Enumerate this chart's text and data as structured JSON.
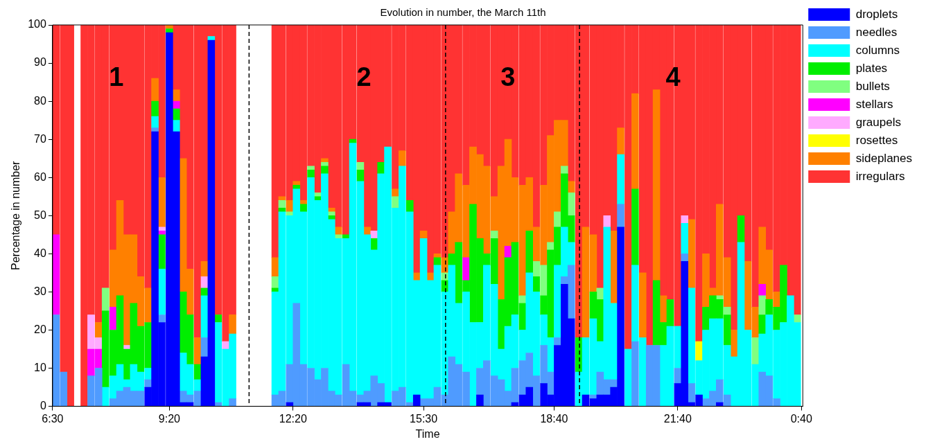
{
  "chart_data": {
    "type": "bar",
    "stacked": true,
    "title": "Evolution in number, the March 11th",
    "xlabel": "Time",
    "ylabel": "Percentage in number",
    "x": [
      "--03-11T06:35",
      "--03-11T06:46",
      "--03-11T06:56",
      "--03-11T07:16",
      "--03-11T07:26",
      "--03-11T07:37",
      "--03-11T07:47",
      "--03-11T07:58",
      "--03-11T08:08",
      "--03-11T08:18",
      "--03-11T08:28",
      "--03-11T08:38",
      "--03-11T08:49",
      "--03-11T08:59",
      "--03-11T09:09",
      "--03-11T09:20",
      "--03-11T09:30",
      "--03-11T09:40",
      "--03-11T09:50",
      "--03-11T10:01",
      "--03-11T10:11",
      "--03-11T10:21",
      "--03-11T10:31",
      "--03-11T10:42",
      "--03-11T10:52",
      "--03-11T11:54",
      "--03-11T12:04",
      "--03-11T12:15",
      "--03-11T12:25",
      "--03-11T12:35",
      "--03-11T12:46",
      "--03-11T12:56",
      "--03-11T13:06",
      "--03-11T13:16",
      "--03-11T13:26",
      "--03-11T13:37",
      "--03-11T13:47",
      "--03-11T13:58",
      "--03-11T14:08",
      "--03-11T14:18",
      "--03-11T14:28",
      "--03-11T14:38",
      "--03-11T14:49",
      "--03-11T14:59",
      "--03-11T15:10",
      "--03-11T15:20",
      "--03-11T15:30",
      "--03-11T15:40",
      "--03-11T15:50",
      "--03-11T16:01",
      "--03-11T16:11",
      "--03-11T16:21",
      "--03-11T16:32",
      "--03-11T16:42",
      "--03-11T16:52",
      "--03-11T17:02",
      "--03-11T17:13",
      "--03-11T17:23",
      "--03-11T17:33",
      "--03-11T17:43",
      "--03-11T17:54",
      "--03-11T18:04",
      "--03-11T18:14",
      "--03-11T18:25",
      "--03-11T18:35",
      "--03-11T18:45",
      "--03-11T18:55",
      "--03-11T19:05",
      "--03-11T19:16",
      "--03-11T19:26",
      "--03-11T19:37",
      "--03-11T19:47",
      "--03-11T19:57",
      "--03-11T20:07",
      "--03-11T20:17",
      "--03-11T20:28",
      "--03-11T20:38",
      "--03-11T20:49",
      "--03-11T20:59",
      "--03-11T21:09",
      "--03-11T21:19",
      "--03-11T21:29",
      "--03-11T21:40",
      "--03-11T21:50",
      "--03-11T22:00",
      "--03-11T22:11",
      "--03-11T22:21",
      "--03-11T22:31",
      "--03-11T22:41",
      "--03-11T22:52",
      "--03-11T23:02",
      "--03-11T23:12",
      "--03-11T23:22",
      "--03-11T23:33",
      "--03-11T23:43",
      "--03-11T23:53",
      "--03-12T00:04",
      "--03-12T00:14",
      "--03-12T00:24",
      "--03-12T00:34"
    ],
    "series": [
      {
        "name": "droplets",
        "color": "#0000ff",
        "values": [
          0,
          0,
          0,
          0,
          0,
          0,
          0,
          0,
          0,
          0,
          0,
          0,
          5,
          72,
          22,
          98,
          72,
          1,
          1,
          0,
          13,
          96,
          0,
          0,
          0,
          0,
          0,
          1,
          0,
          0,
          0,
          0,
          0,
          0,
          0,
          0,
          0,
          1,
          1,
          0,
          1,
          1,
          0,
          0,
          0,
          3,
          0,
          0,
          0,
          0,
          0,
          0,
          0,
          0,
          3,
          0,
          0,
          0,
          0,
          1,
          3,
          5,
          0,
          6,
          3,
          16,
          32,
          23,
          0,
          3,
          2,
          3,
          3,
          5,
          47,
          0,
          0,
          0,
          0,
          0,
          0,
          0,
          6,
          38,
          1,
          3,
          0,
          0,
          1,
          0,
          0,
          0,
          0,
          0,
          0,
          0,
          0,
          0,
          0,
          0
        ]
      },
      {
        "name": "needles",
        "color": "#4f9bff",
        "values": [
          24,
          9,
          0,
          0,
          8,
          10,
          0,
          2,
          4,
          5,
          4,
          4,
          2,
          1,
          2,
          0,
          0,
          3,
          2,
          4,
          5,
          0,
          1,
          0,
          2,
          3,
          4,
          10,
          27,
          11,
          10,
          7,
          10,
          4,
          3,
          11,
          4,
          2,
          3,
          8,
          5,
          0,
          4,
          5,
          1,
          0,
          2,
          2,
          5,
          3,
          13,
          11,
          9,
          0,
          7,
          12,
          8,
          7,
          4,
          9,
          9,
          9,
          8,
          10,
          6,
          2,
          2,
          14,
          0,
          0,
          1,
          6,
          4,
          2,
          6,
          0,
          17,
          0,
          16,
          16,
          0,
          0,
          4,
          2,
          5,
          0,
          2,
          4,
          6,
          3,
          0,
          0,
          0,
          0,
          9,
          8,
          2,
          0,
          0,
          0
        ]
      },
      {
        "name": "columns",
        "color": "#00ffff",
        "values": [
          0,
          0,
          0,
          0,
          0,
          0,
          5,
          6,
          7,
          2,
          7,
          5,
          3,
          3,
          12,
          0,
          3,
          10,
          8,
          3,
          11,
          1,
          21,
          15,
          17,
          27,
          47,
          39,
          30,
          40,
          50,
          47,
          51,
          45,
          41,
          33,
          65,
          56,
          41,
          33,
          55,
          67,
          48,
          58,
          50,
          30,
          42,
          31,
          32,
          27,
          24,
          16,
          21,
          22,
          12,
          25,
          24,
          8,
          17,
          14,
          8,
          21,
          22,
          8,
          9,
          19,
          13,
          6,
          9,
          15,
          20,
          8,
          40,
          20,
          13,
          15,
          20,
          18,
          0,
          0,
          16,
          21,
          11,
          8,
          25,
          9,
          18,
          19,
          16,
          13,
          13,
          43,
          20,
          11,
          10,
          16,
          18,
          22,
          29,
          22
        ]
      },
      {
        "name": "plates",
        "color": "#00ee00",
        "values": [
          0,
          0,
          0,
          0,
          0,
          0,
          20,
          12,
          18,
          8,
          16,
          12,
          12,
          4,
          9,
          1,
          3,
          16,
          13,
          4,
          2,
          0,
          2,
          0,
          0,
          1,
          1,
          0,
          1,
          2,
          2,
          1,
          2,
          1,
          0,
          1,
          1,
          3,
          0,
          3,
          3,
          0,
          0,
          0,
          3,
          0,
          0,
          0,
          2,
          3,
          3,
          16,
          3,
          31,
          22,
          3,
          12,
          13,
          18,
          19,
          7,
          11,
          4,
          5,
          23,
          10,
          14,
          7,
          9,
          0,
          7,
          11,
          0,
          0,
          0,
          0,
          20,
          0,
          0,
          17,
          6,
          7,
          0,
          0,
          0,
          0,
          6,
          6,
          5,
          8,
          0,
          7,
          0,
          0,
          5,
          4,
          6,
          15,
          0,
          0
        ]
      },
      {
        "name": "bullets",
        "color": "#80ff80",
        "values": [
          0,
          0,
          0,
          0,
          0,
          0,
          6,
          0,
          0,
          0,
          0,
          0,
          0,
          0,
          0,
          0,
          0,
          0,
          0,
          0,
          0,
          0,
          0,
          0,
          0,
          3,
          2,
          1,
          0,
          0,
          1,
          1,
          1,
          1,
          1,
          0,
          0,
          2,
          0,
          0,
          0,
          0,
          3,
          0,
          0,
          0,
          0,
          0,
          0,
          2,
          0,
          0,
          0,
          0,
          0,
          0,
          2,
          0,
          0,
          0,
          2,
          0,
          4,
          8,
          2,
          4,
          2,
          6,
          0,
          0,
          0,
          3,
          0,
          0,
          0,
          0,
          0,
          0,
          0,
          0,
          0,
          0,
          0,
          0,
          0,
          0,
          0,
          0,
          1,
          2,
          0,
          0,
          0,
          7,
          5,
          0,
          0,
          0,
          0,
          2
        ]
      },
      {
        "name": "stellars",
        "color": "#ff00ff",
        "values": [
          21,
          0,
          0,
          0,
          7,
          5,
          0,
          6,
          0,
          0,
          0,
          0,
          0,
          0,
          1,
          0,
          2,
          0,
          0,
          0,
          0,
          0,
          0,
          0,
          0,
          0,
          0,
          0,
          0,
          0,
          0,
          0,
          0,
          0,
          0,
          0,
          0,
          0,
          0,
          0,
          0,
          0,
          0,
          0,
          0,
          0,
          0,
          0,
          0,
          0,
          0,
          0,
          6,
          0,
          0,
          0,
          0,
          0,
          3,
          0,
          0,
          0,
          0,
          0,
          0,
          0,
          0,
          0,
          0,
          0,
          0,
          0,
          0,
          0,
          0,
          0,
          0,
          0,
          0,
          0,
          0,
          0,
          0,
          0,
          0,
          0,
          0,
          0,
          0,
          0,
          0,
          0,
          0,
          0,
          3,
          0,
          0,
          0,
          0,
          0
        ]
      },
      {
        "name": "graupels",
        "color": "#ffaaff",
        "values": [
          0,
          0,
          0,
          0,
          9,
          3,
          0,
          0,
          0,
          1,
          0,
          0,
          0,
          0,
          1,
          0,
          0,
          0,
          0,
          0,
          3,
          0,
          0,
          2,
          0,
          0,
          0,
          0,
          0,
          0,
          0,
          0,
          0,
          0,
          0,
          0,
          0,
          0,
          0,
          2,
          0,
          0,
          0,
          0,
          0,
          0,
          0,
          0,
          0,
          0,
          0,
          0,
          0,
          0,
          0,
          0,
          0,
          0,
          0,
          0,
          0,
          0,
          0,
          0,
          0,
          0,
          0,
          0,
          0,
          0,
          0,
          0,
          3,
          0,
          0,
          0,
          0,
          0,
          0,
          0,
          0,
          0,
          0,
          2,
          0,
          0,
          0,
          0,
          0,
          0,
          0,
          0,
          0,
          0,
          0,
          0,
          0,
          0,
          0,
          0
        ]
      },
      {
        "name": "rosettes",
        "color": "#ffff00",
        "values": [
          0,
          0,
          0,
          0,
          0,
          0,
          0,
          0,
          0,
          0,
          0,
          0,
          0,
          0,
          0,
          0,
          0,
          0,
          0,
          0,
          0,
          0,
          0,
          0,
          0,
          0,
          0,
          0,
          0,
          0,
          0,
          0,
          0,
          0,
          0,
          0,
          0,
          0,
          0,
          0,
          0,
          0,
          0,
          0,
          0,
          0,
          0,
          0,
          0,
          0,
          0,
          0,
          0,
          0,
          0,
          0,
          0,
          0,
          0,
          0,
          0,
          0,
          0,
          0,
          0,
          0,
          0,
          0,
          0,
          0,
          0,
          0,
          0,
          0,
          0,
          0,
          0,
          0,
          0,
          0,
          0,
          0,
          0,
          0,
          0,
          5,
          0,
          0,
          0,
          0,
          0,
          0,
          0,
          0,
          0,
          0,
          0,
          0,
          0,
          0
        ]
      },
      {
        "name": "sideplanes",
        "color": "#ff8000",
        "values": [
          0,
          0,
          0,
          0,
          0,
          4,
          0,
          15,
          25,
          29,
          18,
          13,
          9,
          6,
          13,
          1,
          3,
          35,
          12,
          7,
          4,
          0,
          0,
          0,
          5,
          5,
          1,
          3,
          1,
          1,
          0,
          0,
          1,
          1,
          2,
          0,
          0,
          0,
          2,
          0,
          0,
          0,
          2,
          4,
          0,
          2,
          2,
          2,
          1,
          4,
          11,
          18,
          19,
          15,
          22,
          23,
          9,
          35,
          28,
          17,
          29,
          14,
          9,
          21,
          28,
          24,
          12,
          3,
          0,
          29,
          15,
          0,
          0,
          19,
          7,
          0,
          25,
          17,
          0,
          50,
          7,
          0,
          0,
          0,
          18,
          0,
          14,
          2,
          24,
          13,
          7,
          0,
          18,
          8,
          15,
          13,
          4,
          0,
          0,
          0
        ]
      },
      {
        "name": "irregulars",
        "color": "#ff3333",
        "values": [
          55,
          91,
          100,
          100,
          76,
          78,
          69,
          59,
          46,
          55,
          55,
          66,
          69,
          14,
          40,
          0,
          17,
          35,
          64,
          82,
          62,
          3,
          76,
          83,
          76,
          61,
          45,
          46,
          41,
          46,
          37,
          44,
          35,
          48,
          53,
          55,
          30,
          36,
          53,
          54,
          36,
          32,
          43,
          33,
          46,
          65,
          54,
          65,
          60,
          61,
          49,
          39,
          42,
          32,
          34,
          37,
          45,
          37,
          30,
          40,
          42,
          40,
          53,
          42,
          29,
          25,
          25,
          41,
          82,
          53,
          55,
          69,
          50,
          54,
          27,
          85,
          18,
          65,
          84,
          17,
          71,
          72,
          79,
          50,
          51,
          83,
          60,
          69,
          47,
          61,
          80,
          50,
          62,
          74,
          53,
          59,
          70,
          63,
          71,
          76
        ]
      }
    ],
    "xlim": [
      "--03-11T06:30",
      "--03-12T00:42"
    ],
    "xticks": [
      {
        "value": "--03-11T06:30",
        "label": "6:30"
      },
      {
        "value": "--03-11T09:20",
        "label": "9:20"
      },
      {
        "value": "--03-11T12:20",
        "label": "12:20"
      },
      {
        "value": "--03-11T15:30",
        "label": "15:30"
      },
      {
        "value": "--03-11T18:40",
        "label": "18:40"
      },
      {
        "value": "--03-11T21:40",
        "label": "21:40"
      },
      {
        "value": "--03-12T00:40",
        "label": "0:40"
      }
    ],
    "ylim": [
      0,
      100
    ],
    "yticks": [
      0,
      10,
      20,
      30,
      40,
      50,
      60,
      70,
      80,
      90,
      100
    ],
    "grid": false,
    "legend": "top right",
    "ref_lines": [
      {
        "axis": "x",
        "value": "--03-11T11:16",
        "line_style": "dashed",
        "color": "#000000"
      },
      {
        "axis": "x",
        "value": "--03-11T16:02",
        "line_style": "dashed",
        "color": "#000000"
      },
      {
        "axis": "x",
        "value": "--03-11T19:17",
        "line_style": "dashed",
        "color": "#000000"
      }
    ],
    "annotations": [
      "1",
      "2",
      "3",
      "4"
    ]
  }
}
